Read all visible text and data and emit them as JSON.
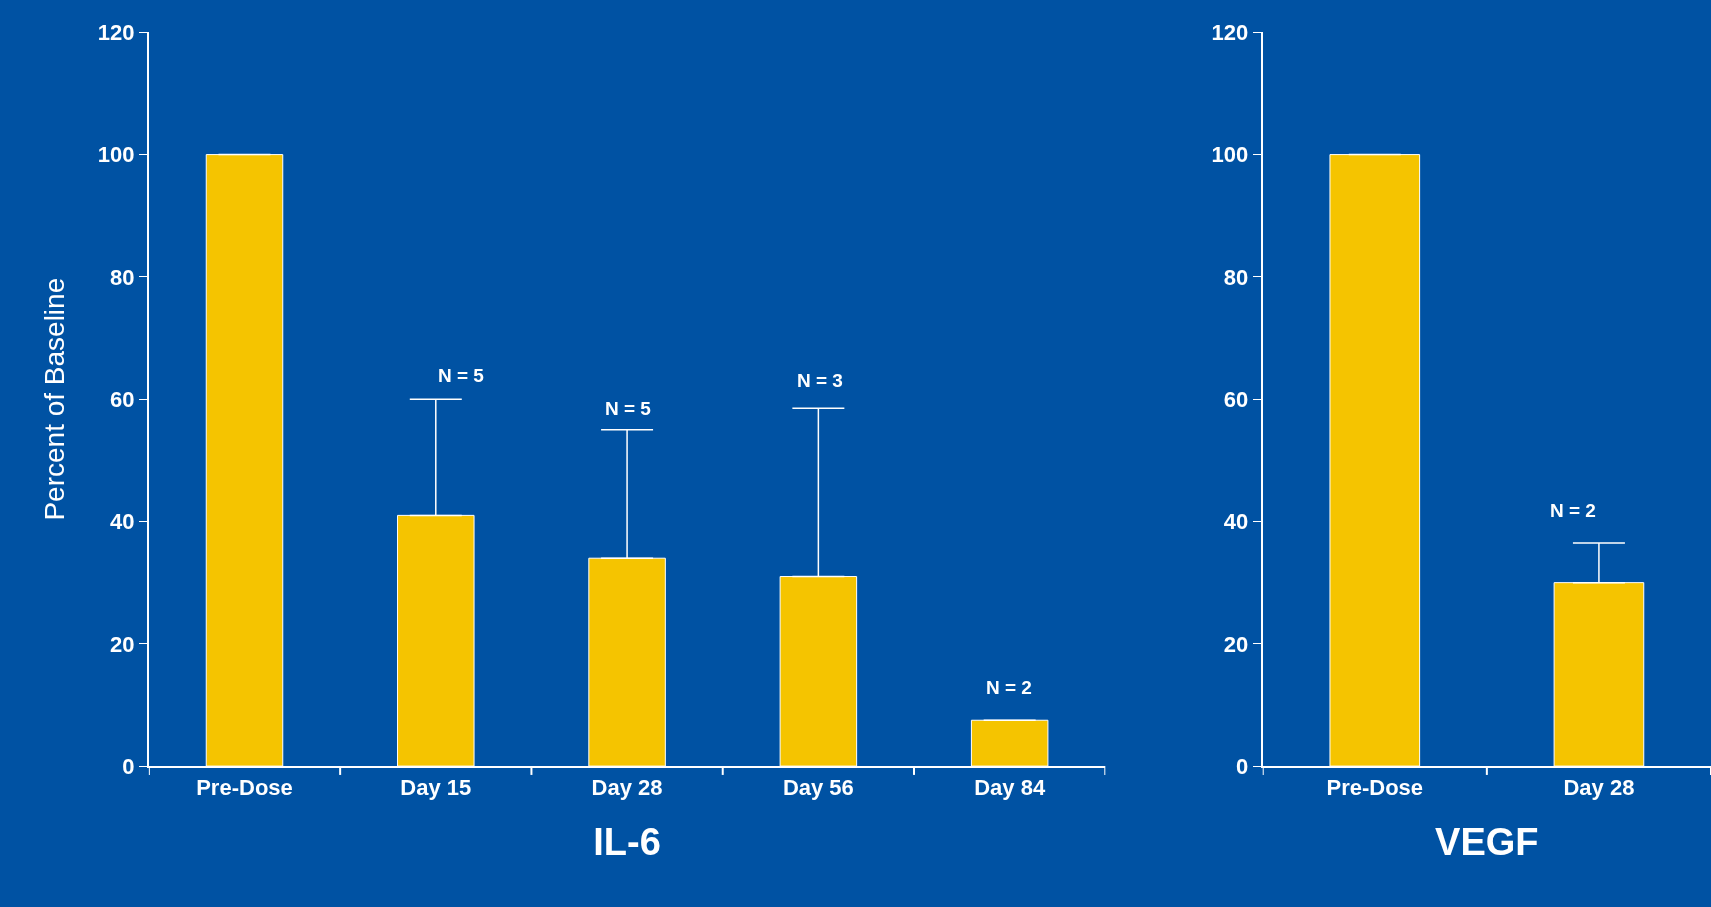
{
  "chart_data": [
    {
      "type": "bar",
      "xlabel": "IL-6",
      "ylabel": "Percent of Baseline",
      "categories": [
        "Pre-Dose",
        "Day 15",
        "Day 28",
        "Day 56",
        "Day 84"
      ],
      "values": [
        100,
        41,
        34,
        31,
        7.5
      ],
      "color": "#f5c400",
      "errors": [
        null,
        [
          41,
          60
        ],
        [
          34,
          55
        ],
        [
          31,
          58.5
        ],
        null
      ],
      "ylim": [
        0,
        120
      ],
      "yticks": [
        0,
        20,
        40,
        60,
        80,
        100,
        120
      ],
      "grid": false,
      "annotations": [
        "N = 5",
        "N = 5",
        "N = 3",
        "N = 2"
      ]
    },
    {
      "type": "bar",
      "xlabel": "VEGF",
      "categories": [
        "Pre-Dose",
        "Day 28"
      ],
      "values": [
        100,
        30
      ],
      "color": "#f5c400",
      "errors": [
        null,
        [
          30,
          36.5
        ]
      ],
      "ylim": [
        0,
        120
      ],
      "yticks": [
        0,
        20,
        40,
        60,
        80,
        100,
        120
      ],
      "grid": false,
      "annotations": [
        "N = 2"
      ]
    }
  ]
}
